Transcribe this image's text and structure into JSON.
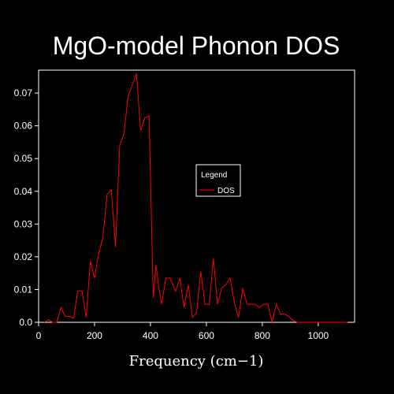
{
  "chart_data": {
    "type": "line",
    "title": "MgO-model Phonon DOS",
    "xlabel": "Frequency (cm−1)",
    "ylabel": "",
    "xlim": [
      0,
      1130
    ],
    "ylim": [
      0,
      0.077
    ],
    "xticks": [
      0,
      200,
      400,
      600,
      800,
      1000
    ],
    "xtick_labels": [
      "0",
      "200",
      "400",
      "600",
      "800",
      "1000"
    ],
    "yticks": [
      0,
      0.01,
      0.02,
      0.03,
      0.04,
      0.05,
      0.06,
      0.07
    ],
    "ytick_labels": [
      "0.0",
      "0.01",
      "0.02",
      "0.03",
      "0.04",
      "0.05",
      "0.06",
      "0.07"
    ],
    "grid": false,
    "legend": {
      "title": "Legend",
      "placement": "center-right"
    },
    "colors": {
      "background": "#000000",
      "foreground": "#ffffff",
      "line": "#ff0000"
    },
    "series": [
      {
        "name": "DOS",
        "x": [
          20,
          35,
          50,
          65,
          80,
          95,
          110,
          125,
          140,
          155,
          170,
          185,
          200,
          215,
          230,
          245,
          260,
          275,
          290,
          305,
          320,
          335,
          350,
          365,
          380,
          395,
          410,
          420,
          430,
          440,
          455,
          470,
          490,
          505,
          520,
          535,
          550,
          565,
          580,
          595,
          610,
          625,
          640,
          655,
          670,
          685,
          700,
          715,
          730,
          745,
          760,
          775,
          790,
          805,
          820,
          835,
          850,
          865,
          880,
          895,
          910,
          925,
          940,
          955,
          970,
          985,
          1000,
          1015,
          1030,
          1045,
          1060,
          1075,
          1090,
          1105
        ],
        "values": [
          0.0,
          0.0008,
          0.0,
          0.0,
          0.0045,
          0.0018,
          0.0018,
          0.0012,
          0.0096,
          0.0096,
          0.0015,
          0.0186,
          0.0135,
          0.021,
          0.026,
          0.039,
          0.0405,
          0.023,
          0.054,
          0.0575,
          0.069,
          0.0725,
          0.076,
          0.0585,
          0.0625,
          0.063,
          0.0075,
          0.0175,
          0.0105,
          0.0055,
          0.0135,
          0.0135,
          0.0095,
          0.0135,
          0.0045,
          0.0115,
          0.0015,
          0.003,
          0.0155,
          0.0055,
          0.0055,
          0.0195,
          0.0055,
          0.0105,
          0.0115,
          0.0135,
          0.006,
          0.0015,
          0.0105,
          0.0055,
          0.0055,
          0.0055,
          0.0045,
          0.0055,
          0.0055,
          0.0,
          0.0055,
          0.0025,
          0.0025,
          0.0018,
          0.0005,
          0.0,
          0.0,
          0.0,
          0.0,
          0.0,
          0.0,
          0.0,
          0.0,
          0.0,
          0.0,
          0.0,
          0.0,
          0.0
        ]
      }
    ]
  }
}
